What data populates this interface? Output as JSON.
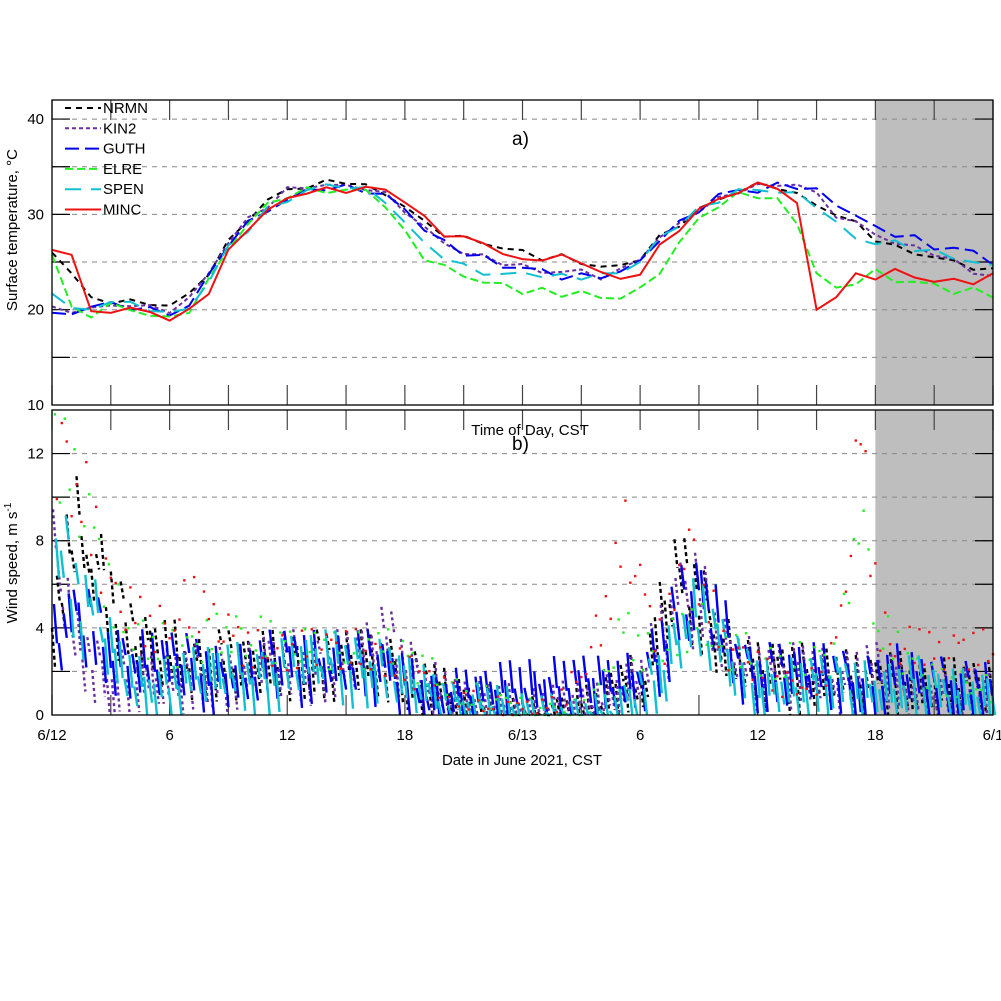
{
  "chart_data": [
    {
      "type": "line",
      "panel_label": "a)",
      "ylabel": "Surface temperature, °C",
      "xlabel": "",
      "ylim": [
        10,
        42
      ],
      "yticks": [
        10,
        20,
        30,
        40
      ],
      "ygrid": [
        15,
        20,
        25,
        30,
        35,
        40
      ],
      "xlim": [
        0,
        48
      ],
      "shaded_region_hours": [
        42,
        48
      ],
      "legend_position": "top-left",
      "x_hours": [
        0,
        1,
        2,
        3,
        4,
        5,
        6,
        7,
        8,
        9,
        10,
        11,
        12,
        13,
        14,
        15,
        16,
        17,
        18,
        19,
        20,
        21,
        22,
        23,
        24,
        25,
        26,
        27,
        28,
        29,
        30,
        31,
        32,
        33,
        34,
        35,
        36,
        37,
        38,
        39,
        40,
        41,
        42,
        43,
        44,
        45,
        46,
        47,
        48
      ],
      "series": [
        {
          "name": "NRMN",
          "color": "#000000",
          "dash": "6,5",
          "values": [
            26,
            24,
            21,
            21,
            20.8,
            20.6,
            20.5,
            21.5,
            24,
            27,
            29.5,
            31.5,
            32.5,
            33,
            33.3,
            33.5,
            33,
            32,
            31,
            29,
            28,
            27.5,
            27,
            26.5,
            26,
            25.5,
            25.5,
            25,
            24.5,
            24.5,
            25.5,
            27.5,
            29,
            30.5,
            31.5,
            32.5,
            33,
            33,
            32,
            31,
            30,
            29,
            27.5,
            26.5,
            26,
            25.5,
            25,
            24.5,
            24
          ]
        },
        {
          "name": "KIN2",
          "color": "#6a2fa0",
          "dash": "4,3",
          "values": [
            20,
            20,
            20,
            20.5,
            20.5,
            20.2,
            20,
            21,
            24,
            27,
            29.5,
            31,
            32.5,
            33,
            33,
            33,
            32.8,
            32,
            30.5,
            28.5,
            27,
            26,
            25.5,
            25,
            24.5,
            24,
            24,
            24,
            23.5,
            24,
            25.5,
            27.5,
            29,
            30.5,
            31.5,
            32.5,
            33,
            33,
            33.3,
            32,
            30,
            29,
            28,
            27,
            26.5,
            26,
            25,
            24,
            23.5
          ]
        },
        {
          "name": "GUTH",
          "color": "#0000ee",
          "dash": "14,6",
          "values": [
            19.5,
            19.5,
            20.5,
            20.5,
            20.3,
            20,
            19.5,
            20.5,
            23.5,
            27,
            29,
            30.5,
            31.5,
            32.5,
            32.8,
            32.8,
            32.5,
            32,
            30.5,
            28.5,
            27,
            26,
            25.5,
            24.5,
            24.5,
            24,
            23.5,
            23.5,
            23.5,
            24,
            25,
            27.5,
            29,
            30.5,
            32,
            32.5,
            32.5,
            33,
            33,
            32.5,
            31,
            30,
            28.5,
            28,
            27.5,
            26.5,
            26.5,
            26,
            25
          ]
        },
        {
          "name": "ELRE",
          "color": "#22ee22",
          "dash": "8,4",
          "values": [
            26,
            20,
            19.5,
            20.5,
            20,
            19.5,
            19,
            20,
            23,
            26.5,
            29,
            31,
            32,
            32.5,
            32.5,
            32.5,
            32.5,
            31,
            28,
            25.5,
            24.5,
            23.5,
            23,
            22.5,
            22,
            22,
            21.5,
            22,
            21,
            21.5,
            22,
            24,
            27,
            29.5,
            31,
            32,
            32,
            31.5,
            29,
            24,
            22,
            23,
            24,
            23,
            23,
            22.5,
            22,
            22,
            21.5
          ]
        },
        {
          "name": "SPEN",
          "color": "#10c0d0",
          "dash": "16,10",
          "values": [
            22,
            20,
            20,
            21,
            20.5,
            20.2,
            19.5,
            20.2,
            23,
            26.5,
            28.5,
            30.5,
            31.5,
            32.5,
            33,
            33,
            32.5,
            31.5,
            29,
            27,
            25.5,
            24.5,
            24,
            23.5,
            24,
            23.5,
            23.5,
            23.5,
            23.5,
            24,
            25,
            27.5,
            29,
            30.5,
            31.5,
            32.5,
            32.5,
            32.5,
            32,
            31,
            29,
            27.5,
            27,
            27,
            26.5,
            26,
            25.5,
            25,
            24.5
          ]
        },
        {
          "name": "MINC",
          "color": "#ee1111",
          "dash": "",
          "values": [
            26.2,
            26,
            19.5,
            20,
            20,
            19.8,
            19,
            19.8,
            22,
            26,
            28.5,
            30.5,
            31.5,
            32.5,
            32.5,
            32.5,
            32.8,
            32.5,
            31.5,
            29.5,
            28,
            27.5,
            27,
            26,
            25,
            25.5,
            25.5,
            25,
            24,
            23,
            24,
            26.5,
            28.5,
            30.5,
            31.5,
            32.5,
            33,
            33,
            31,
            20,
            21.5,
            23.5,
            23.5,
            24,
            23.5,
            23,
            23,
            23,
            23.5
          ]
        }
      ],
      "tick_hours": [
        0,
        3,
        6,
        9,
        12,
        15,
        18,
        21,
        24,
        27,
        30,
        33,
        36,
        39,
        42,
        45,
        48
      ]
    },
    {
      "type": "scatter",
      "panel_label": "b)",
      "top_label": "Time of Day, CST",
      "ylabel": "Wind speed, m s",
      "ylabel_superscript": "-1",
      "xlabel": "Date in June 2021, CST",
      "ylim": [
        0,
        14
      ],
      "yticks": [
        0,
        4,
        8,
        12
      ],
      "ygrid": [
        2,
        4,
        6,
        8,
        10,
        12
      ],
      "xlim": [
        0,
        48
      ],
      "xtick_labels": [
        {
          "hour": 0,
          "label": "6/12"
        },
        {
          "hour": 6,
          "label": "6"
        },
        {
          "hour": 12,
          "label": "12"
        },
        {
          "hour": 18,
          "label": "18"
        },
        {
          "hour": 24,
          "label": "6/13"
        },
        {
          "hour": 30,
          "label": "6"
        },
        {
          "hour": 36,
          "label": "12"
        },
        {
          "hour": 42,
          "label": "18"
        },
        {
          "hour": 48,
          "label": "6/1"
        }
      ],
      "shaded_region_hours": [
        42,
        48
      ],
      "x_hours": [
        0,
        1,
        2,
        3,
        4,
        5,
        6,
        7,
        8,
        9,
        10,
        11,
        12,
        13,
        14,
        15,
        16,
        17,
        18,
        19,
        20,
        21,
        22,
        23,
        24,
        25,
        26,
        27,
        28,
        29,
        30,
        31,
        32,
        33,
        34,
        35,
        36,
        37,
        38,
        39,
        40,
        41,
        42,
        43,
        44,
        45,
        46,
        47,
        48
      ],
      "series": [
        {
          "name": "NRMN",
          "color": "#000000",
          "values": [
            4,
            9.5,
            8,
            6,
            4,
            3.5,
            3.5,
            3,
            3,
            3,
            2.8,
            3,
            3,
            3,
            3,
            3,
            3,
            2.8,
            2.5,
            2,
            1.5,
            1,
            0.8,
            0.5,
            0.5,
            0.3,
            0.5,
            0.8,
            1,
            2.5,
            1.5,
            5,
            7,
            6,
            4,
            3,
            2.5,
            2.5,
            2.5,
            2.5,
            2.5,
            2,
            2,
            2.2,
            2,
            1.8,
            2,
            1.8,
            1.8
          ]
        },
        {
          "name": "KIN2",
          "color": "#6a2fa0",
          "values": [
            8,
            4,
            3,
            2,
            2.5,
            2,
            2,
            2.5,
            2.5,
            2.5,
            2.5,
            3,
            3,
            3,
            3,
            3,
            3.5,
            4,
            3,
            2,
            1.5,
            1,
            1,
            1,
            0.8,
            0.8,
            1,
            1,
            1,
            2,
            2.5,
            4,
            6,
            6,
            4,
            3,
            2.5,
            2.5,
            2.5,
            2.5,
            2,
            2.5,
            2.5,
            2,
            1.8,
            1.5,
            1.5,
            1.5,
            1.5
          ]
        },
        {
          "name": "GUTH",
          "color": "#0000ee",
          "values": [
            4,
            5,
            4.5,
            3.5,
            3,
            3,
            3,
            2.8,
            2.5,
            2.5,
            2.5,
            3,
            3,
            3,
            3,
            3,
            3,
            2.5,
            2,
            1.5,
            1.5,
            1.5,
            1.5,
            1.8,
            2,
            2,
            2,
            2,
            2,
            2,
            2.5,
            4,
            5.5,
            6,
            4.5,
            3,
            2.5,
            2.5,
            2.5,
            2.5,
            2.5,
            2,
            2,
            2.5,
            2,
            2,
            2,
            1.8,
            1.8
          ]
        },
        {
          "name": "ELRE",
          "color": "#22ee22",
          "values": [
            13,
            10,
            8,
            5,
            4,
            3.5,
            3,
            3,
            3.5,
            4,
            3.5,
            3.5,
            3,
            3,
            3,
            3,
            3,
            3,
            2.5,
            2,
            1.5,
            1,
            0.8,
            0.5,
            0.3,
            0.3,
            0.2,
            0.3,
            1.5,
            4,
            3,
            3,
            4,
            4,
            3,
            3,
            2.5,
            2.5,
            2.5,
            2.5,
            2.5,
            10,
            4,
            3,
            2,
            1.5,
            1.5,
            1.5,
            1
          ]
        },
        {
          "name": "SPEN",
          "color": "#10c0d0",
          "values": [
            9,
            6,
            5,
            3,
            2,
            2,
            2,
            2.3,
            2.5,
            2.5,
            2.5,
            2.5,
            2.8,
            3,
            3,
            3,
            2.8,
            2.5,
            2,
            1.5,
            1,
            1,
            1,
            0.8,
            0.5,
            0.5,
            0.5,
            0.5,
            0.5,
            1,
            1.5,
            3,
            5,
            5,
            3.5,
            2.5,
            2,
            2,
            2,
            2,
            2,
            1.8,
            1.8,
            2,
            2,
            1.5,
            1.5,
            1.5,
            1.5
          ]
        },
        {
          "name": "MINC",
          "color": "#ee1111",
          "values": [
            12.5,
            11,
            8,
            5,
            4.5,
            4,
            4.5,
            5.5,
            4,
            3.5,
            3,
            3,
            3,
            3,
            3,
            3,
            3,
            2.5,
            2,
            1.5,
            1,
            0.8,
            0.5,
            0.3,
            0.2,
            0.3,
            1,
            2.5,
            5,
            8,
            5,
            3,
            8.5,
            6,
            3,
            2.5,
            2,
            1.5,
            1.5,
            1.5,
            4,
            12.5,
            4,
            3,
            3.5,
            2.5,
            3,
            3,
            3
          ]
        }
      ]
    }
  ],
  "legend": {
    "entries": [
      "NRMN",
      "KIN2",
      "GUTH",
      "ELRE",
      "SPEN",
      "MINC"
    ]
  },
  "colors": {
    "shade": "#bebebe",
    "grid": "#888888"
  }
}
